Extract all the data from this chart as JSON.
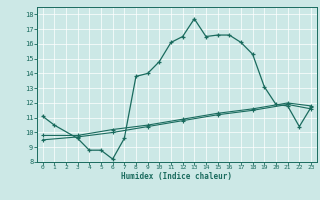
{
  "title": "",
  "xlabel": "Humidex (Indice chaleur)",
  "bg_color": "#cce8e6",
  "line_color": "#1a6b5e",
  "grid_color": "#ffffff",
  "xlim": [
    -0.5,
    23.5
  ],
  "ylim": [
    8,
    18.5
  ],
  "xticks": [
    0,
    1,
    2,
    3,
    4,
    5,
    6,
    7,
    8,
    9,
    10,
    11,
    12,
    13,
    14,
    15,
    16,
    17,
    18,
    19,
    20,
    21,
    22,
    23
  ],
  "yticks": [
    8,
    9,
    10,
    11,
    12,
    13,
    14,
    15,
    16,
    17,
    18
  ],
  "line1_x": [
    0,
    1,
    3,
    4,
    5,
    6,
    7,
    8,
    9,
    10,
    11,
    12,
    13,
    14,
    15,
    16,
    17,
    18,
    19,
    20,
    21,
    22,
    23
  ],
  "line1_y": [
    11.1,
    10.5,
    9.6,
    8.8,
    8.8,
    8.2,
    9.6,
    13.8,
    14.0,
    14.8,
    16.1,
    16.5,
    17.7,
    16.5,
    16.6,
    16.6,
    16.1,
    15.3,
    13.1,
    11.9,
    11.8,
    10.4,
    11.7
  ],
  "line2_x": [
    0,
    3,
    6,
    9,
    12,
    15,
    18,
    21,
    23
  ],
  "line2_y": [
    9.8,
    9.8,
    10.2,
    10.5,
    10.9,
    11.3,
    11.6,
    12.0,
    11.8
  ],
  "line3_x": [
    0,
    3,
    6,
    9,
    12,
    15,
    18,
    21,
    23
  ],
  "line3_y": [
    9.5,
    9.7,
    10.0,
    10.4,
    10.8,
    11.2,
    11.5,
    11.9,
    11.6
  ]
}
